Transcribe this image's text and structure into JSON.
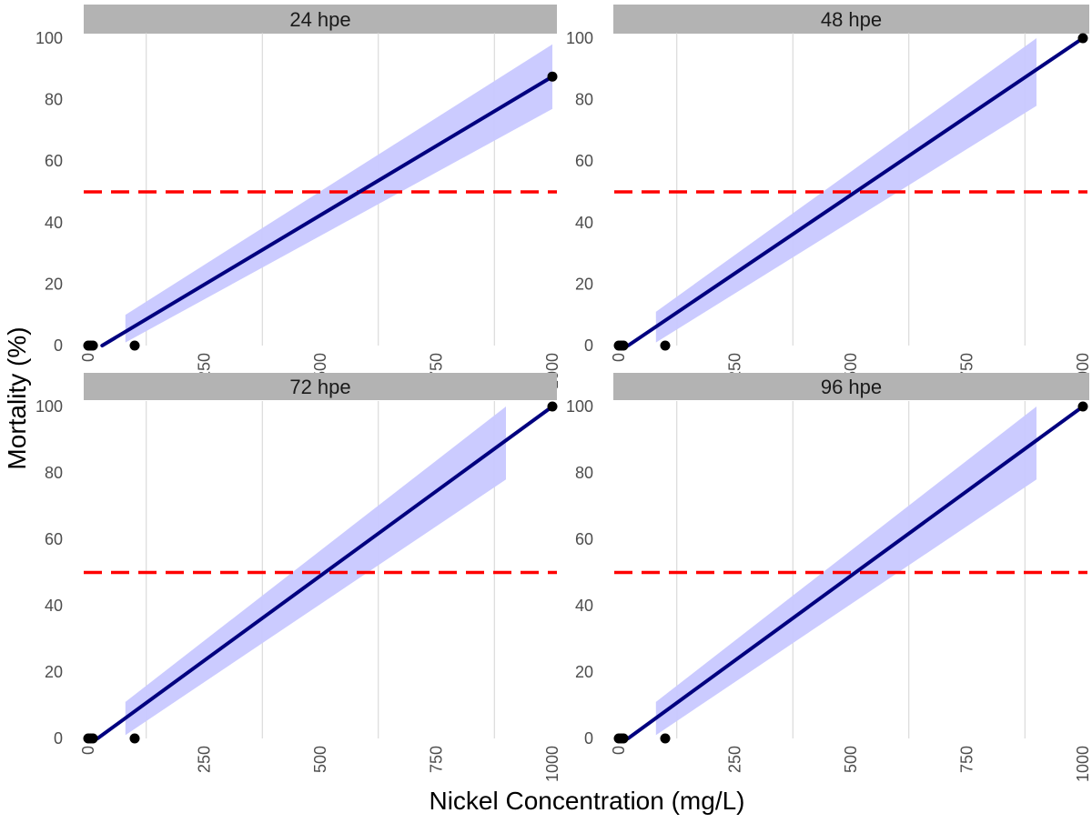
{
  "chart_data": {
    "type": "line",
    "xlabel": "Nickel Concentration (mg/L)",
    "ylabel": "Mortality (%)",
    "xlim": [
      0,
      1000
    ],
    "ylim": [
      0,
      100
    ],
    "x_ticks": [
      0,
      250,
      500,
      750,
      1000
    ],
    "x_tick_labels": [
      "0",
      "250",
      "500",
      "750",
      "1000"
    ],
    "y_ticks": [
      0,
      20,
      40,
      60,
      80,
      100
    ],
    "y_tick_labels": [
      "0",
      "20",
      "40",
      "60",
      "80",
      "100"
    ],
    "reference_line": {
      "y": 50,
      "style": "dashed",
      "color": "#ff0000"
    },
    "grid": "vertical minor lines",
    "colors": {
      "fit_line": "#00007f",
      "ribbon": "#c8c8ff",
      "points": "#000000",
      "strip_background": "#b3b3b3",
      "grid": "#d4d4d4"
    },
    "panels": [
      {
        "label": "24 hpe",
        "points": [
          {
            "x": 0,
            "y": 0
          },
          {
            "x": 5,
            "y": 0
          },
          {
            "x": 10,
            "y": 0
          },
          {
            "x": 100,
            "y": 0
          },
          {
            "x": 1000,
            "y": 87.5
          }
        ],
        "fit": {
          "x": [
            30,
            1000
          ],
          "y": [
            0,
            87.5
          ]
        },
        "ribbon": {
          "x": [
            80,
            1000
          ],
          "lower": [
            1,
            77
          ],
          "upper": [
            10,
            98
          ]
        }
      },
      {
        "label": "48 hpe",
        "points": [
          {
            "x": 0,
            "y": 0
          },
          {
            "x": 5,
            "y": 0
          },
          {
            "x": 10,
            "y": 0
          },
          {
            "x": 100,
            "y": 0
          },
          {
            "x": 1000,
            "y": 100
          }
        ],
        "fit": {
          "x": [
            20,
            1000
          ],
          "y": [
            0,
            100
          ]
        },
        "ribbon": {
          "x": [
            80,
            900
          ],
          "lower": [
            1,
            78
          ],
          "upper": [
            11,
            100
          ]
        }
      },
      {
        "label": "72 hpe",
        "points": [
          {
            "x": 0,
            "y": 0
          },
          {
            "x": 5,
            "y": 0
          },
          {
            "x": 10,
            "y": 0
          },
          {
            "x": 100,
            "y": 0
          },
          {
            "x": 1000,
            "y": 100
          }
        ],
        "fit": {
          "x": [
            20,
            1000
          ],
          "y": [
            0,
            100
          ]
        },
        "ribbon": {
          "x": [
            80,
            900
          ],
          "lower": [
            1,
            78
          ],
          "upper": [
            11,
            100
          ]
        }
      },
      {
        "label": "96 hpe",
        "points": [
          {
            "x": 0,
            "y": 0
          },
          {
            "x": 5,
            "y": 0
          },
          {
            "x": 10,
            "y": 0
          },
          {
            "x": 100,
            "y": 0
          },
          {
            "x": 1000,
            "y": 100
          }
        ],
        "fit": {
          "x": [
            20,
            1000
          ],
          "y": [
            0,
            100
          ]
        },
        "ribbon": {
          "x": [
            80,
            900
          ],
          "lower": [
            1,
            78
          ],
          "upper": [
            11,
            100
          ]
        }
      }
    ]
  }
}
